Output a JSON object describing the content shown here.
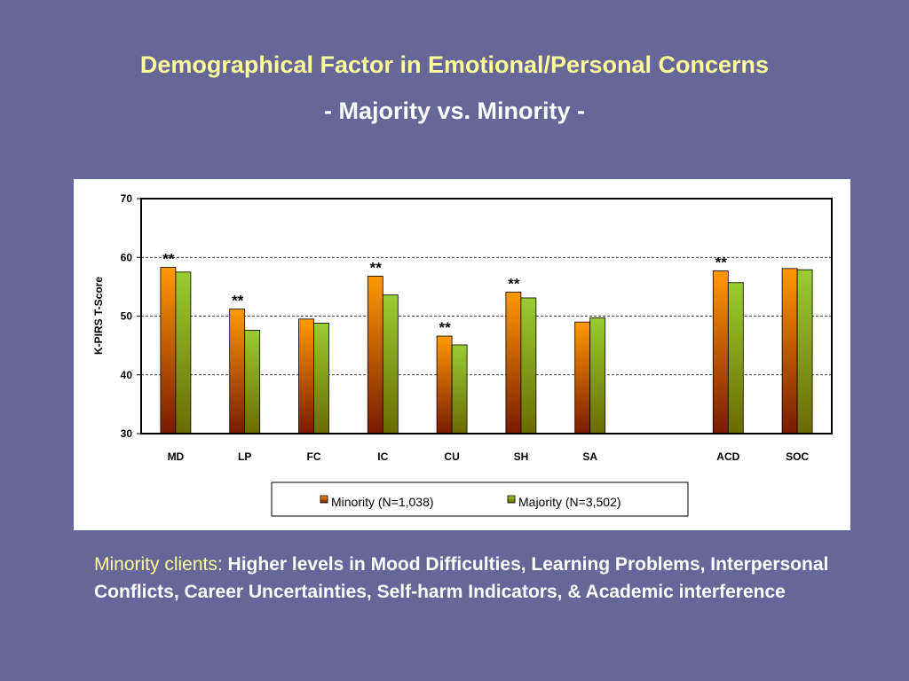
{
  "slide": {
    "title": "Demographical Factor in Emotional/Personal Concerns",
    "subtitle": "- Majority vs. Minority -"
  },
  "caption": {
    "highlight": "Minority clients:",
    "text": " Higher levels in Mood Difficulties, Learning Problems, Interpersonal Conflicts, Career Uncertainties, Self-harm Indicators, & Academic interference"
  },
  "colors": {
    "background": "#666699",
    "title": "#FFFF99",
    "minority_top": "#FF9900",
    "minority_bottom": "#7A1A00",
    "majority_top": "#99CC33",
    "majority_bottom": "#6B6B00"
  },
  "chart_data": {
    "type": "bar",
    "ylabel": "K-PIRS  T-Score",
    "ylim": [
      30,
      70
    ],
    "yticks": [
      30,
      40,
      50,
      60,
      70
    ],
    "grid": true,
    "legend_position": "bottom",
    "categories": [
      "MD",
      "LP",
      "FC",
      "IC",
      "CU",
      "SH",
      "SA",
      "",
      "ACD",
      "SOC"
    ],
    "series": [
      {
        "name": "Minority (N=1,038)",
        "values": [
          58.3,
          51.2,
          49.5,
          56.8,
          46.6,
          54.1,
          49.0,
          null,
          57.7,
          58.1
        ]
      },
      {
        "name": "Majority (N=3,502)",
        "values": [
          57.5,
          47.6,
          48.8,
          53.6,
          45.1,
          53.1,
          49.7,
          null,
          55.7,
          57.9
        ]
      }
    ],
    "annotations": [
      "**",
      "**",
      "",
      "**",
      "**",
      "**",
      "",
      "",
      "**",
      ""
    ]
  }
}
